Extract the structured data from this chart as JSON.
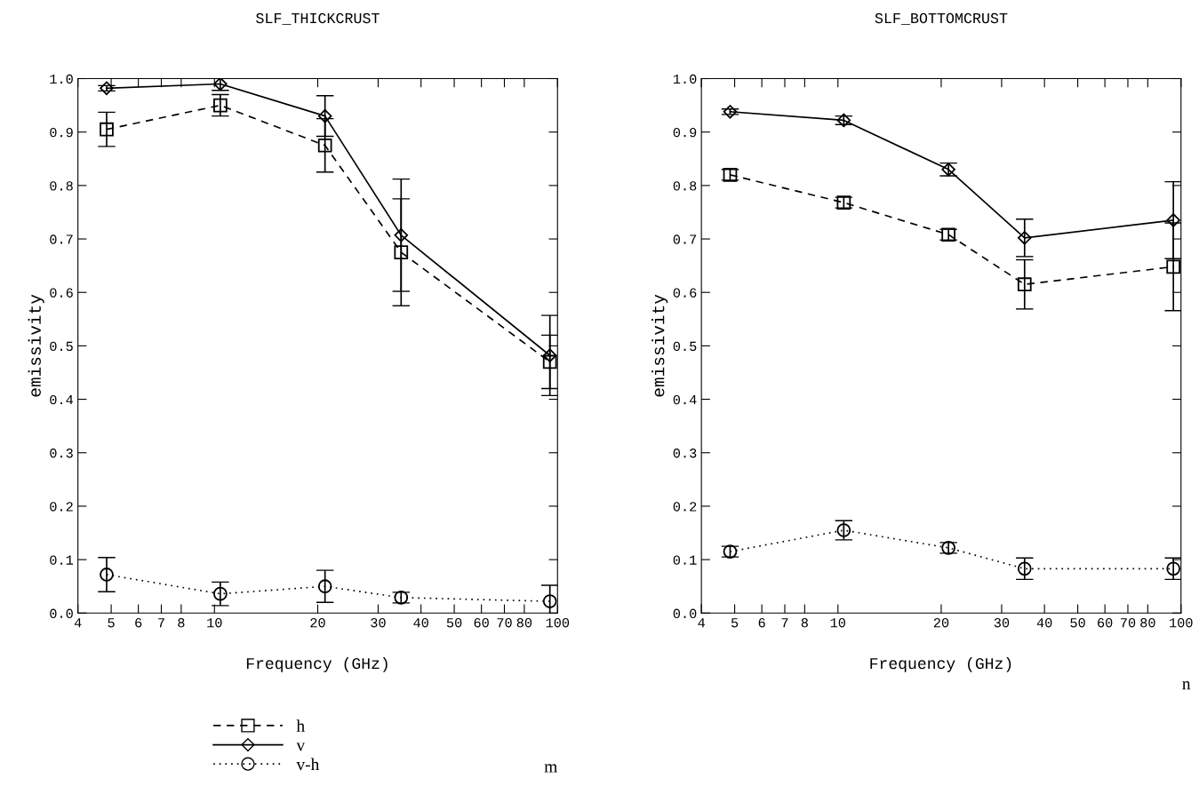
{
  "chart_data": [
    {
      "type": "line",
      "title": "SLF_THICKCRUST",
      "xlabel": "Frequency (GHz)",
      "ylabel": "emissivity",
      "log": "x",
      "grid": false,
      "legend": "bottom",
      "x": [
        4.85,
        10.4,
        21,
        35,
        95
      ],
      "xlim": [
        4,
        100
      ],
      "xticks": [
        4,
        5,
        6,
        7,
        8,
        10,
        20,
        30,
        40,
        50,
        60,
        70,
        80,
        100
      ],
      "ylim": [
        0,
        1
      ],
      "yticks": [
        {
          "value": 0,
          "label": "0.0"
        },
        {
          "value": 0.1,
          "label": "0.1"
        },
        {
          "value": 0.2,
          "label": "0.2"
        },
        {
          "value": 0.3,
          "label": "0.3"
        },
        {
          "value": 0.4,
          "label": "0.4"
        },
        {
          "value": 0.5,
          "label": "0.5"
        },
        {
          "value": 0.6,
          "label": "0.6"
        },
        {
          "value": 0.7,
          "label": "0.7"
        },
        {
          "value": 0.8,
          "label": "0.8"
        },
        {
          "value": 0.9,
          "label": "0.9"
        },
        {
          "value": 1.0,
          "label": "1.0"
        }
      ],
      "annotations": [
        "m"
      ],
      "series": [
        {
          "name": "h",
          "color": "#000000",
          "line_style": "dashed",
          "marker": "square",
          "values": [
            0.905,
            0.95,
            0.875,
            0.675,
            0.47
          ],
          "errors": [
            0.032,
            0.02,
            0.05,
            0.1,
            0.05
          ]
        },
        {
          "name": "v",
          "color": "#000000",
          "line_style": "solid",
          "marker": "diamond",
          "values": [
            0.982,
            0.99,
            0.93,
            0.707,
            0.482
          ],
          "errors": [
            0.005,
            0.012,
            0.038,
            0.105,
            0.075
          ]
        },
        {
          "name": "v-h",
          "color": "#000000",
          "line_style": "dotted",
          "marker": "circle",
          "values": [
            0.072,
            0.036,
            0.05,
            0.029,
            0.022
          ],
          "errors": [
            0.032,
            0.022,
            0.03,
            0.01,
            0.03
          ]
        }
      ]
    },
    {
      "type": "line",
      "title": "SLF_BOTTOMCRUST",
      "xlabel": "Frequency (GHz)",
      "ylabel": "emissivity",
      "log": "x",
      "grid": false,
      "x": [
        4.85,
        10.4,
        21,
        35,
        95
      ],
      "xlim": [
        4,
        100
      ],
      "xticks": [
        4,
        5,
        6,
        7,
        8,
        10,
        20,
        30,
        40,
        50,
        60,
        70,
        80,
        100
      ],
      "ylim": [
        0,
        1
      ],
      "yticks": [
        {
          "value": 0,
          "label": "0.0"
        },
        {
          "value": 0.1,
          "label": "0.1"
        },
        {
          "value": 0.2,
          "label": "0.2"
        },
        {
          "value": 0.3,
          "label": "0.3"
        },
        {
          "value": 0.4,
          "label": "0.4"
        },
        {
          "value": 0.5,
          "label": "0.5"
        },
        {
          "value": 0.6,
          "label": "0.6"
        },
        {
          "value": 0.7,
          "label": "0.7"
        },
        {
          "value": 0.8,
          "label": "0.8"
        },
        {
          "value": 0.9,
          "label": "0.9"
        },
        {
          "value": 1.0,
          "label": "1.0"
        }
      ],
      "annotations": [
        "n"
      ],
      "series": [
        {
          "color": "#000000",
          "line_style": "dashed",
          "marker": "square",
          "values": [
            0.82,
            0.768,
            0.708,
            0.615,
            0.648
          ],
          "errors": [
            0.01,
            0.01,
            0.01,
            0.046,
            0.082
          ]
        },
        {
          "color": "#000000",
          "line_style": "solid",
          "marker": "diamond",
          "values": [
            0.938,
            0.922,
            0.83,
            0.702,
            0.735
          ],
          "errors": [
            0.005,
            0.008,
            0.012,
            0.035,
            0.072
          ]
        },
        {
          "color": "#000000",
          "line_style": "dotted",
          "marker": "circle",
          "values": [
            0.115,
            0.155,
            0.122,
            0.083,
            0.083
          ],
          "errors": [
            0.01,
            0.018,
            0.01,
            0.02,
            0.02
          ]
        }
      ]
    }
  ]
}
